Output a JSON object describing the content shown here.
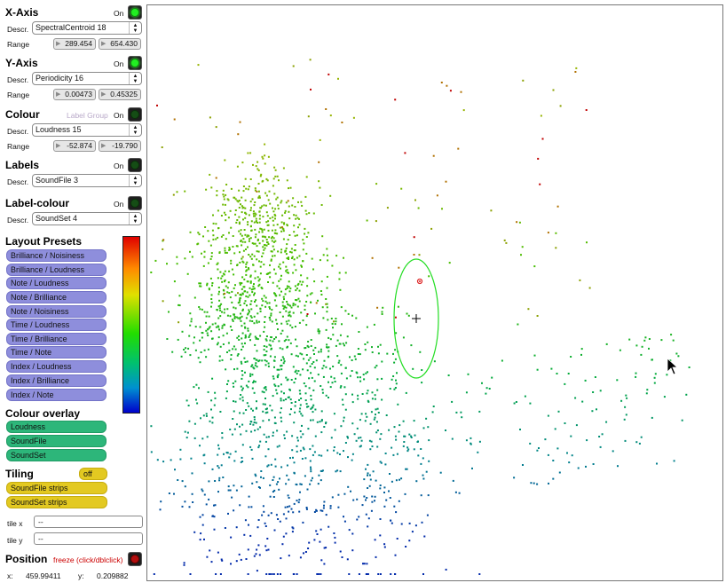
{
  "x_axis": {
    "title": "X-Axis",
    "on_label": "On",
    "descr_label": "Descr.",
    "descr_value": "SpectralCentroid 18",
    "range_label": "Range",
    "range_min": "289.454",
    "range_max": "654.430"
  },
  "y_axis": {
    "title": "Y-Axis",
    "on_label": "On",
    "descr_label": "Descr.",
    "descr_value": "Periodicity 16",
    "range_label": "Range",
    "range_min": "0.00473",
    "range_max": "0.45325"
  },
  "colour": {
    "title": "Colour",
    "label_group": "Label Group",
    "on_label": "On",
    "descr_label": "Descr.",
    "descr_value": "Loudness 15",
    "range_label": "Range",
    "range_min": "-52.874",
    "range_max": "-19.790"
  },
  "labels": {
    "title": "Labels",
    "on_label": "On",
    "descr_label": "Descr.",
    "descr_value": "SoundFile 3"
  },
  "label_colour": {
    "title": "Label-colour",
    "on_label": "On",
    "descr_label": "Descr.",
    "descr_value": "SoundSet 4"
  },
  "layout_presets": {
    "title": "Layout Presets",
    "items": [
      "Brilliance / Noisiness",
      "Brilliance / Loudness",
      "Note / Loudness",
      "Note / Brilliance",
      "Note / Noisiness",
      "Time / Loudness",
      "Time / Brilliance",
      "Time / Note",
      "Index / Loudness",
      "Index / Brilliance",
      "Index / Note"
    ]
  },
  "colour_overlay": {
    "title": "Colour overlay",
    "items": [
      "Loudness",
      "SoundFile",
      "SoundSet"
    ]
  },
  "tiling": {
    "title": "Tiling",
    "off_label": "off",
    "items": [
      "SoundFile strips",
      "SoundSet strips"
    ],
    "tile_x_label": "tile x",
    "tile_x_value": "--",
    "tile_y_label": "tile y",
    "tile_y_value": "--"
  },
  "position": {
    "title": "Position",
    "freeze_label": "freeze (click/dblclick)",
    "x_label": "x:",
    "x_value": "459.99411",
    "y_label": "y:",
    "y_value": "0.209882"
  },
  "colors": {
    "preset_bg": "#8e8edc",
    "overlay_bg": "#2db67a",
    "tiling_bg": "#e3c921",
    "led_on": "#22ee22",
    "led_off": "#154d15",
    "selection_ellipse": "#22dd22",
    "freeze_text": "#cc0000"
  }
}
